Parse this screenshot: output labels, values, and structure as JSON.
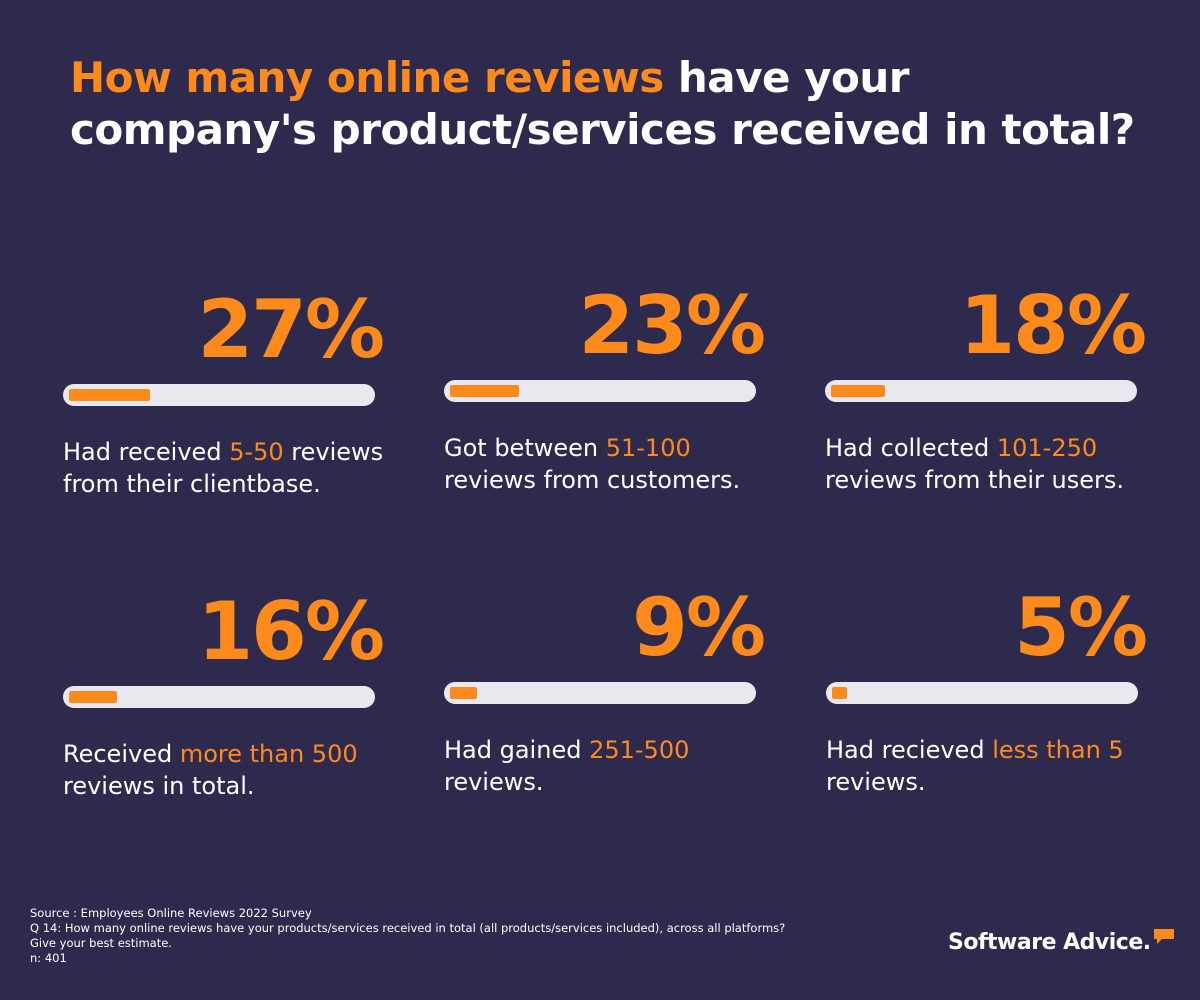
{
  "title": {
    "highlight": "How many online reviews",
    "rest": " have your company's product/services received in total?"
  },
  "colors": {
    "background": "#2d2a4e",
    "accent": "#ff8a1c",
    "track": "#e8e8ee",
    "text": "#ffffff"
  },
  "chart_data": {
    "type": "bar",
    "title": "How many online reviews have your company's product/services received in total?",
    "categories": [
      "5-50",
      "51-100",
      "101-250",
      "more than 500",
      "251-500",
      "less than 5"
    ],
    "values": [
      27,
      23,
      18,
      16,
      9,
      5
    ],
    "unit": "%",
    "ylim": [
      0,
      100
    ],
    "items": [
      {
        "percent": 27,
        "label": "27%",
        "before": "Had received ",
        "range": "5-50",
        "after": " reviews from their clientbase."
      },
      {
        "percent": 23,
        "label": "23%",
        "before": "Got between ",
        "range": "51-100",
        "after": " reviews from customers."
      },
      {
        "percent": 18,
        "label": "18%",
        "before": "Had collected ",
        "range": "101-250",
        "after": " reviews from their users."
      },
      {
        "percent": 16,
        "label": "16%",
        "before": "Received ",
        "range": "more than 500",
        "after": " reviews in total."
      },
      {
        "percent": 9,
        "label": "9%",
        "before": "Had gained ",
        "range": "251-500",
        "after": " reviews."
      },
      {
        "percent": 5,
        "label": "5%",
        "before": "Had recieved ",
        "range": "less than 5",
        "after": " reviews."
      }
    ]
  },
  "footnote": {
    "source": "Source : Employees Online Reviews 2022 Survey",
    "question_line1": "Q 14: How many online reviews have your products/services received in total (all products/services included), across all platforms?",
    "question_line2": "Give your best estimate.",
    "sample": "n: 401"
  },
  "logo": {
    "text": "Software Advice.",
    "icon": "speech-bubble-icon"
  }
}
